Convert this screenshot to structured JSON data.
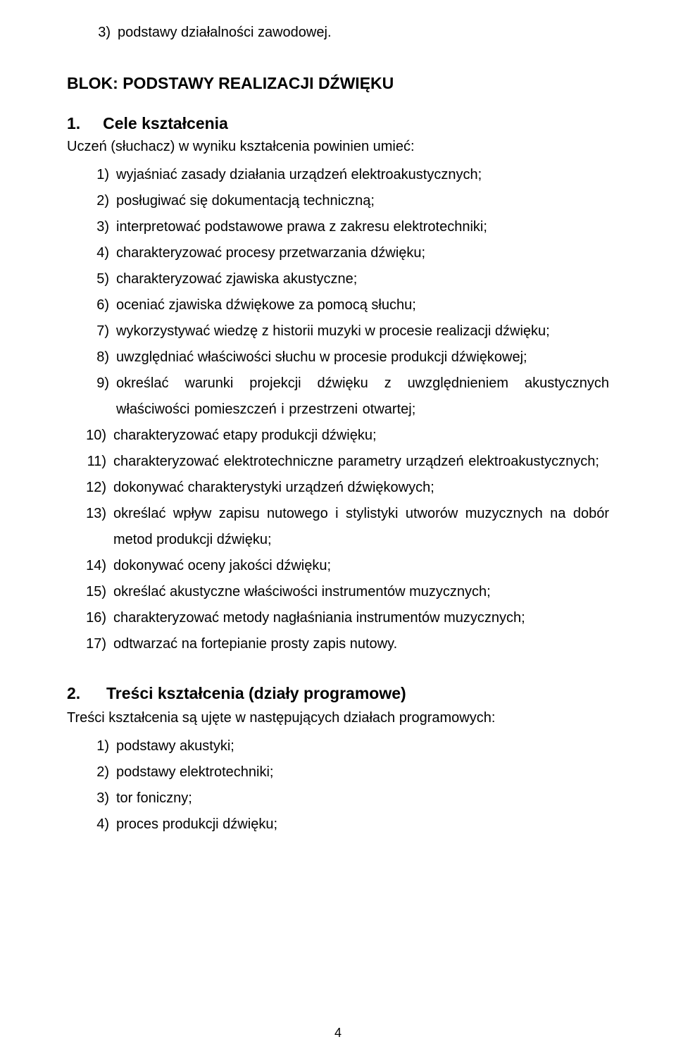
{
  "top_item": {
    "num": "3)",
    "text": "podstawy działalności zawodowej."
  },
  "block_title": "BLOK: PODSTAWY REALIZACJI DŹWIĘKU",
  "section1": {
    "num": "1.",
    "title": "Cele kształcenia",
    "intro": "Uczeń (słuchacz) w wyniku kształcenia powinien umieć:",
    "items": [
      {
        "num": "1)",
        "text": "wyjaśniać zasady działania urządzeń elektroakustycznych;"
      },
      {
        "num": "2)",
        "text": "posługiwać się dokumentacją techniczną;"
      },
      {
        "num": "3)",
        "text": "interpretować podstawowe prawa z zakresu elektrotechniki;"
      },
      {
        "num": "4)",
        "text": "charakteryzować procesy przetwarzania dźwięku;"
      },
      {
        "num": "5)",
        "text": "charakteryzować zjawiska akustyczne;"
      },
      {
        "num": "6)",
        "text": "oceniać zjawiska dźwiękowe za pomocą słuchu;"
      },
      {
        "num": "7)",
        "text": "wykorzystywać wiedzę z historii muzyki w procesie realizacji dźwięku;"
      },
      {
        "num": "8)",
        "text": "uwzględniać właściwości słuchu w procesie produkcji dźwiękowej;"
      },
      {
        "num": "9)",
        "text": "określać warunki projekcji dźwięku z uwzględnieniem akustycznych właściwości pomieszczeń i przestrzeni otwartej;"
      },
      {
        "num": "10)",
        "text": "charakteryzować etapy produkcji dźwięku;"
      },
      {
        "num": "11)",
        "text": "charakteryzować elektrotechniczne parametry urządzeń elektroakustycznych;"
      },
      {
        "num": "12)",
        "text": "dokonywać charakterystyki urządzeń dźwiękowych;"
      },
      {
        "num": "13)",
        "text": "określać wpływ zapisu nutowego i stylistyki utworów muzycznych na dobór metod produkcji dźwięku;"
      },
      {
        "num": "14)",
        "text": "dokonywać oceny jakości dźwięku;"
      },
      {
        "num": "15)",
        "text": "określać akustyczne właściwości instrumentów muzycznych;"
      },
      {
        "num": "16)",
        "text": "charakteryzować metody nagłaśniania instrumentów muzycznych;"
      },
      {
        "num": "17)",
        "text": "odtwarzać na fortepianie prosty zapis nutowy."
      }
    ]
  },
  "section2": {
    "num": "2.",
    "title": "Treści kształcenia (działy programowe)",
    "intro": "Treści kształcenia są ujęte w następujących działach programowych:",
    "items": [
      {
        "num": "1)",
        "text": "podstawy akustyki;"
      },
      {
        "num": "2)",
        "text": "podstawy elektrotechniki;"
      },
      {
        "num": "3)",
        "text": "tor foniczny;"
      },
      {
        "num": "4)",
        "text": "proces produkcji dźwięku;"
      }
    ]
  },
  "page_number": "4"
}
